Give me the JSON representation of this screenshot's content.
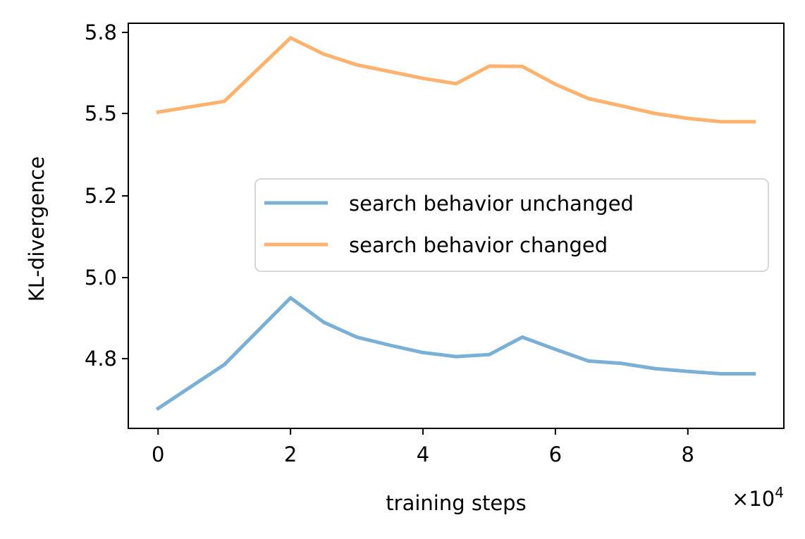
{
  "chart_data": {
    "type": "line",
    "xlabel": "training steps",
    "x_multiplier_label": "×10",
    "x_multiplier_exp": "4",
    "ylabel": "KL-divergence",
    "xlim": [
      -0.45,
      9.45
    ],
    "ylim": [
      4.625,
      5.82
    ],
    "xticks": [
      0,
      2,
      4,
      6,
      8
    ],
    "xtick_labels": [
      "0",
      "2",
      "4",
      "6",
      "8"
    ],
    "yticks": [
      4.8,
      5.0,
      5.2,
      5.5,
      5.8
    ],
    "ytick_labels": [
      "4.8",
      "5.0",
      "5.2",
      "5.5",
      "5.8"
    ],
    "grid": false,
    "legend_position": "center-right",
    "series": [
      {
        "name": "search behavior unchanged",
        "color": "#7aafd6",
        "x": [
          0,
          1,
          2,
          2.5,
          3,
          3.5,
          4,
          4.5,
          5,
          5.5,
          6,
          6.5,
          7,
          7.5,
          8,
          8.5,
          9
        ],
        "y": [
          4.675,
          4.785,
          4.95,
          4.89,
          4.853,
          4.833,
          4.815,
          4.805,
          4.81,
          4.853,
          4.823,
          4.794,
          4.788,
          4.775,
          4.768,
          4.762,
          4.762
        ]
      },
      {
        "name": "search behavior changed",
        "color": "#ffb26e",
        "x": [
          0,
          1,
          2,
          2.5,
          3,
          3.5,
          4,
          4.5,
          5,
          5.5,
          6,
          6.5,
          7,
          7.5,
          8,
          8.5,
          9
        ],
        "y": [
          5.505,
          5.545,
          5.78,
          5.72,
          5.68,
          5.655,
          5.63,
          5.61,
          5.675,
          5.674,
          5.608,
          5.555,
          5.528,
          5.5,
          5.482,
          5.47,
          5.47
        ]
      }
    ]
  }
}
